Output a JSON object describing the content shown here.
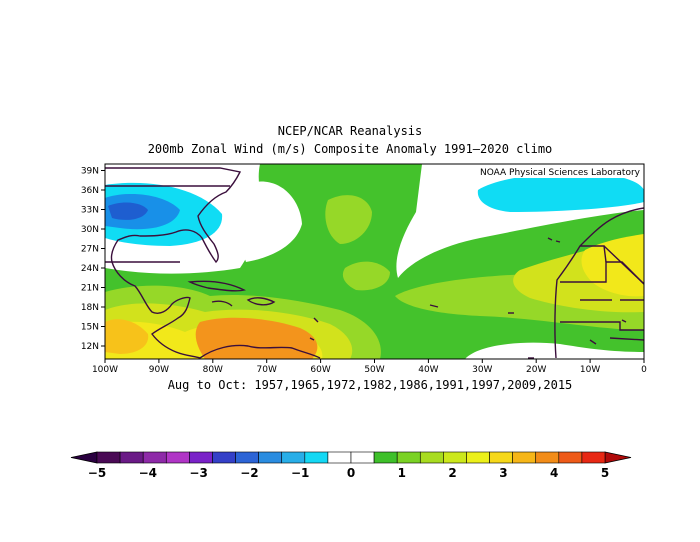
{
  "title": "NCEP/NCAR Reanalysis",
  "subtitle": "200mb Zonal Wind (m/s) Composite Anomaly 1991–2020 climo",
  "credit": "NOAA Physical Sciences Laboratory",
  "caption": "Aug to Oct: 1957,1965,1972,1982,1986,1991,1997,2009,2015",
  "map": {
    "lon_range": [
      -100,
      0
    ],
    "lat_range": [
      10,
      40
    ],
    "lat_ticks": [
      "39N",
      "36N",
      "33N",
      "30N",
      "27N",
      "24N",
      "21N",
      "18N",
      "15N",
      "12N"
    ],
    "lat_values": [
      39,
      36,
      33,
      30,
      27,
      24,
      21,
      18,
      15,
      12
    ],
    "lon_ticks": [
      "100W",
      "90W",
      "80W",
      "70W",
      "60W",
      "50W",
      "40W",
      "30W",
      "20W",
      "10W",
      "0"
    ],
    "lon_values": [
      -100,
      -90,
      -80,
      -70,
      -60,
      -50,
      -40,
      -30,
      -20,
      -10,
      0
    ]
  },
  "colorbar": {
    "labels": [
      "−5",
      "−4",
      "−3",
      "−2",
      "−1",
      "0",
      "1",
      "2",
      "3",
      "4",
      "5"
    ],
    "label_values": [
      -5,
      -4,
      -3,
      -2,
      -1,
      0,
      1,
      2,
      3,
      4,
      5
    ],
    "bin_colors": [
      "#4a0a55",
      "#6a1a86",
      "#8e2aa8",
      "#b035c6",
      "#7a22c8",
      "#3440c8",
      "#2c64d6",
      "#2a8ce0",
      "#28aee8",
      "#14d8f4",
      "#ffffff",
      "#ffffff",
      "#3ec02a",
      "#7ad224",
      "#a8dc20",
      "#cce81c",
      "#ecf01a",
      "#f6d81a",
      "#f6b618",
      "#f28c18",
      "#ee5a18",
      "#e82814"
    ],
    "low_arrow_color": "#2a0040",
    "high_arrow_color": "#b00a0a"
  },
  "legend_colors": {
    "neg2_5": "#1e5ed0",
    "neg1_5": "#1890e8",
    "neg0_5": "#10dcf4",
    "near_zero": "#ffffff",
    "pos0_5": "#44c22c",
    "pos1_5": "#96d828",
    "pos2_5": "#d2e21c",
    "pos3_5": "#f2e81a",
    "pos4_5": "#f7c21a",
    "pos5_5": "#f3941c",
    "coast": "#3a0f3c"
  }
}
